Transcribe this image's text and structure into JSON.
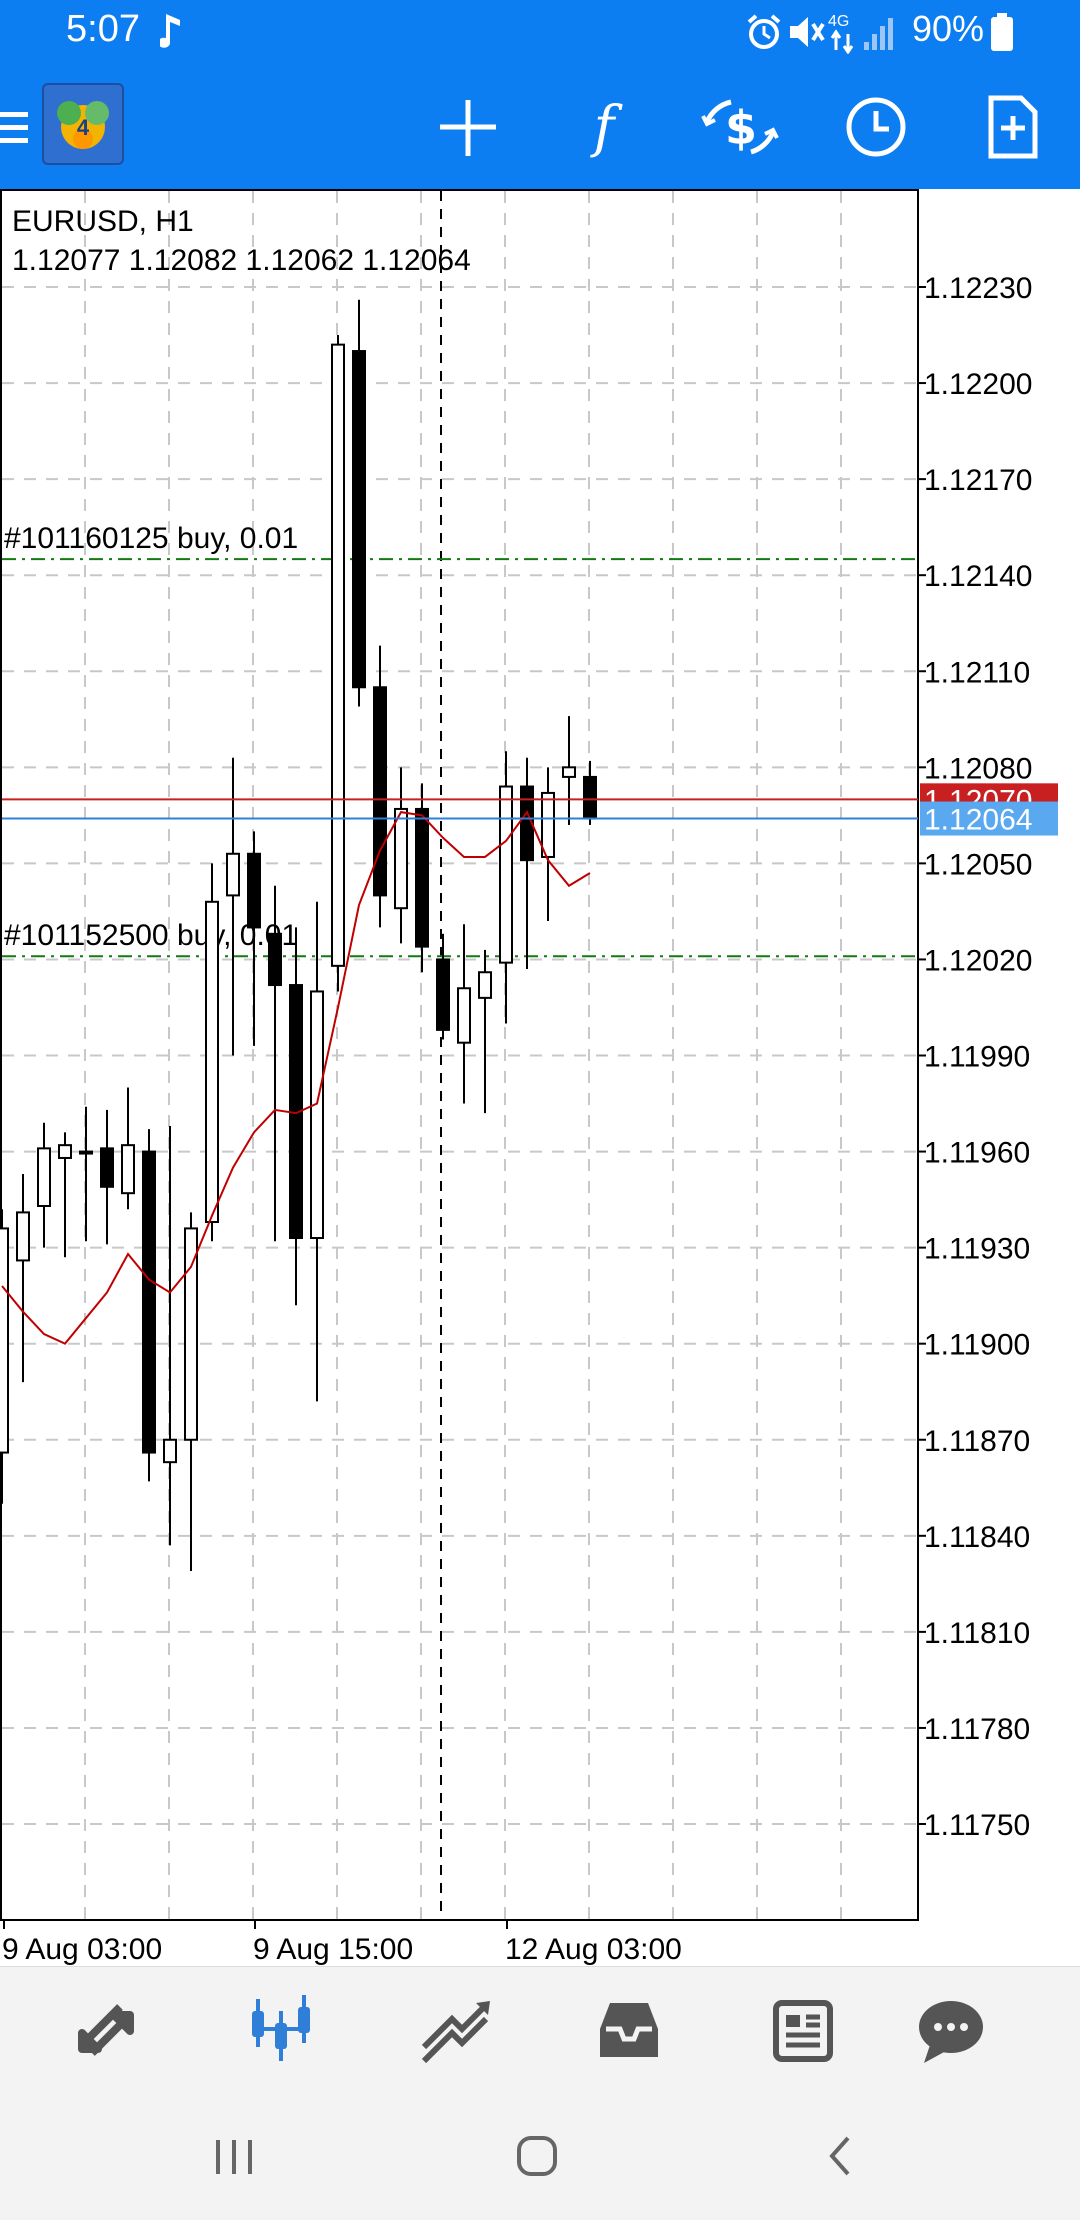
{
  "status_bar": {
    "time": "5:07",
    "network": "4G",
    "battery": "90%",
    "icons": [
      "music-note-icon",
      "alarm-icon",
      "mute-icon",
      "signal-icon",
      "battery-icon"
    ]
  },
  "toolbar": {
    "menu_icon": "menu-icon",
    "app_icon": "metatrader-logo-icon",
    "buttons": [
      "crosshair-icon",
      "indicators-icon",
      "trade-icon",
      "timeframe-icon",
      "new-order-icon"
    ]
  },
  "chart": {
    "symbol": "EURUSD, H1",
    "ohlc": "1.12077 1.12082 1.12062 1.12064",
    "current_price_label": "1.12064",
    "red_line_label": "1.12070",
    "order_lines": [
      {
        "text": "#101160125 buy, 0.01",
        "price": 1.12145
      },
      {
        "text": "#101152500 buy, 0.01",
        "price": 1.12021
      }
    ],
    "colors": {
      "bull_fill": "#ffffff",
      "bear_fill": "#000000",
      "ma_line": "#c00000",
      "bid_line": "#2f7fd8",
      "ask_line": "#c82020",
      "order_line": "#137a13",
      "grid": "#c8c8c8"
    }
  },
  "chart_data": {
    "type": "candlestick",
    "symbol": "EURUSD",
    "timeframe": "H1",
    "price_ticks": [
      1.1223,
      1.122,
      1.1217,
      1.1214,
      1.1211,
      1.1208,
      1.1205,
      1.1202,
      1.1199,
      1.1196,
      1.1193,
      1.119,
      1.1187,
      1.1184,
      1.1181,
      1.1178,
      1.1175
    ],
    "price_tick_labels": [
      "1.12230",
      "1.12200",
      "1.12170",
      "1.12140",
      "1.12110",
      "1.12080",
      "1.12050",
      "1.12020",
      "1.11990",
      "1.11960",
      "1.11930",
      "1.11900",
      "1.11870",
      "1.11840",
      "1.11810",
      "1.11780",
      "1.11750"
    ],
    "time_labels": [
      "9 Aug 03:00",
      "9 Aug 15:00",
      "12 Aug 03:00"
    ],
    "ylim": [
      1.11721,
      1.12261
    ],
    "candles": [
      {
        "o": 1.11866,
        "h": 1.11942,
        "l": 1.1185,
        "c": 1.11936
      },
      {
        "o": 1.11926,
        "h": 1.11953,
        "l": 1.11888,
        "c": 1.11941
      },
      {
        "o": 1.11943,
        "h": 1.11969,
        "l": 1.1193,
        "c": 1.11961
      },
      {
        "o": 1.11958,
        "h": 1.11966,
        "l": 1.11927,
        "c": 1.11962
      },
      {
        "o": 1.1196,
        "h": 1.11974,
        "l": 1.11932,
        "c": 1.1196
      },
      {
        "o": 1.11961,
        "h": 1.11973,
        "l": 1.11931,
        "c": 1.11949
      },
      {
        "o": 1.11947,
        "h": 1.1198,
        "l": 1.11942,
        "c": 1.11962
      },
      {
        "o": 1.1196,
        "h": 1.11967,
        "l": 1.11857,
        "c": 1.11866
      },
      {
        "o": 1.11863,
        "h": 1.11968,
        "l": 1.11837,
        "c": 1.1187
      },
      {
        "o": 1.1187,
        "h": 1.11941,
        "l": 1.11829,
        "c": 1.11936
      },
      {
        "o": 1.11938,
        "h": 1.1205,
        "l": 1.11932,
        "c": 1.12038
      },
      {
        "o": 1.1204,
        "h": 1.12083,
        "l": 1.1199,
        "c": 1.12053
      },
      {
        "o": 1.12053,
        "h": 1.1206,
        "l": 1.11993,
        "c": 1.1203
      },
      {
        "o": 1.12028,
        "h": 1.12043,
        "l": 1.11932,
        "c": 1.12012
      },
      {
        "o": 1.12012,
        "h": 1.1203,
        "l": 1.11912,
        "c": 1.11933
      },
      {
        "o": 1.11933,
        "h": 1.12038,
        "l": 1.11882,
        "c": 1.1201
      },
      {
        "o": 1.12018,
        "h": 1.12215,
        "l": 1.1201,
        "c": 1.12212
      },
      {
        "o": 1.1221,
        "h": 1.12226,
        "l": 1.12099,
        "c": 1.12105
      },
      {
        "o": 1.12105,
        "h": 1.12118,
        "l": 1.1203,
        "c": 1.1204
      },
      {
        "o": 1.12036,
        "h": 1.1208,
        "l": 1.12025,
        "c": 1.12067
      },
      {
        "o": 1.12067,
        "h": 1.12075,
        "l": 1.12016,
        "c": 1.12024
      },
      {
        "o": 1.1202,
        "h": 1.12028,
        "l": 1.11995,
        "c": 1.11998
      },
      {
        "o": 1.11994,
        "h": 1.12031,
        "l": 1.11975,
        "c": 1.12011
      },
      {
        "o": 1.12008,
        "h": 1.12023,
        "l": 1.11972,
        "c": 1.12016
      },
      {
        "o": 1.12019,
        "h": 1.12085,
        "l": 1.12,
        "c": 1.12074
      },
      {
        "o": 1.12074,
        "h": 1.12083,
        "l": 1.12017,
        "c": 1.12051
      },
      {
        "o": 1.12052,
        "h": 1.1208,
        "l": 1.12032,
        "c": 1.12072
      },
      {
        "o": 1.12077,
        "h": 1.12096,
        "l": 1.12062,
        "c": 1.1208
      },
      {
        "o": 1.12077,
        "h": 1.12082,
        "l": 1.12062,
        "c": 1.12064
      }
    ],
    "moving_average": [
      1.11918,
      1.1191,
      1.11903,
      1.119,
      1.11908,
      1.11916,
      1.11928,
      1.1192,
      1.11916,
      1.11924,
      1.1194,
      1.11955,
      1.11966,
      1.11973,
      1.11972,
      1.11975,
      1.12005,
      1.12037,
      1.12054,
      1.12066,
      1.12065,
      1.12058,
      1.12052,
      1.12052,
      1.12057,
      1.12066,
      1.12051,
      1.12043,
      1.12047
    ],
    "bid": 1.12064,
    "ask": 1.1207
  },
  "bottom_nav": [
    {
      "name": "quotes-nav-icon",
      "active": false
    },
    {
      "name": "chart-nav-icon",
      "active": true
    },
    {
      "name": "trade-nav-icon",
      "active": false
    },
    {
      "name": "history-nav-icon",
      "active": false
    },
    {
      "name": "news-nav-icon",
      "active": false
    },
    {
      "name": "messages-nav-icon",
      "active": false
    }
  ],
  "system_nav": [
    "recent-apps-icon",
    "home-icon",
    "back-icon"
  ]
}
